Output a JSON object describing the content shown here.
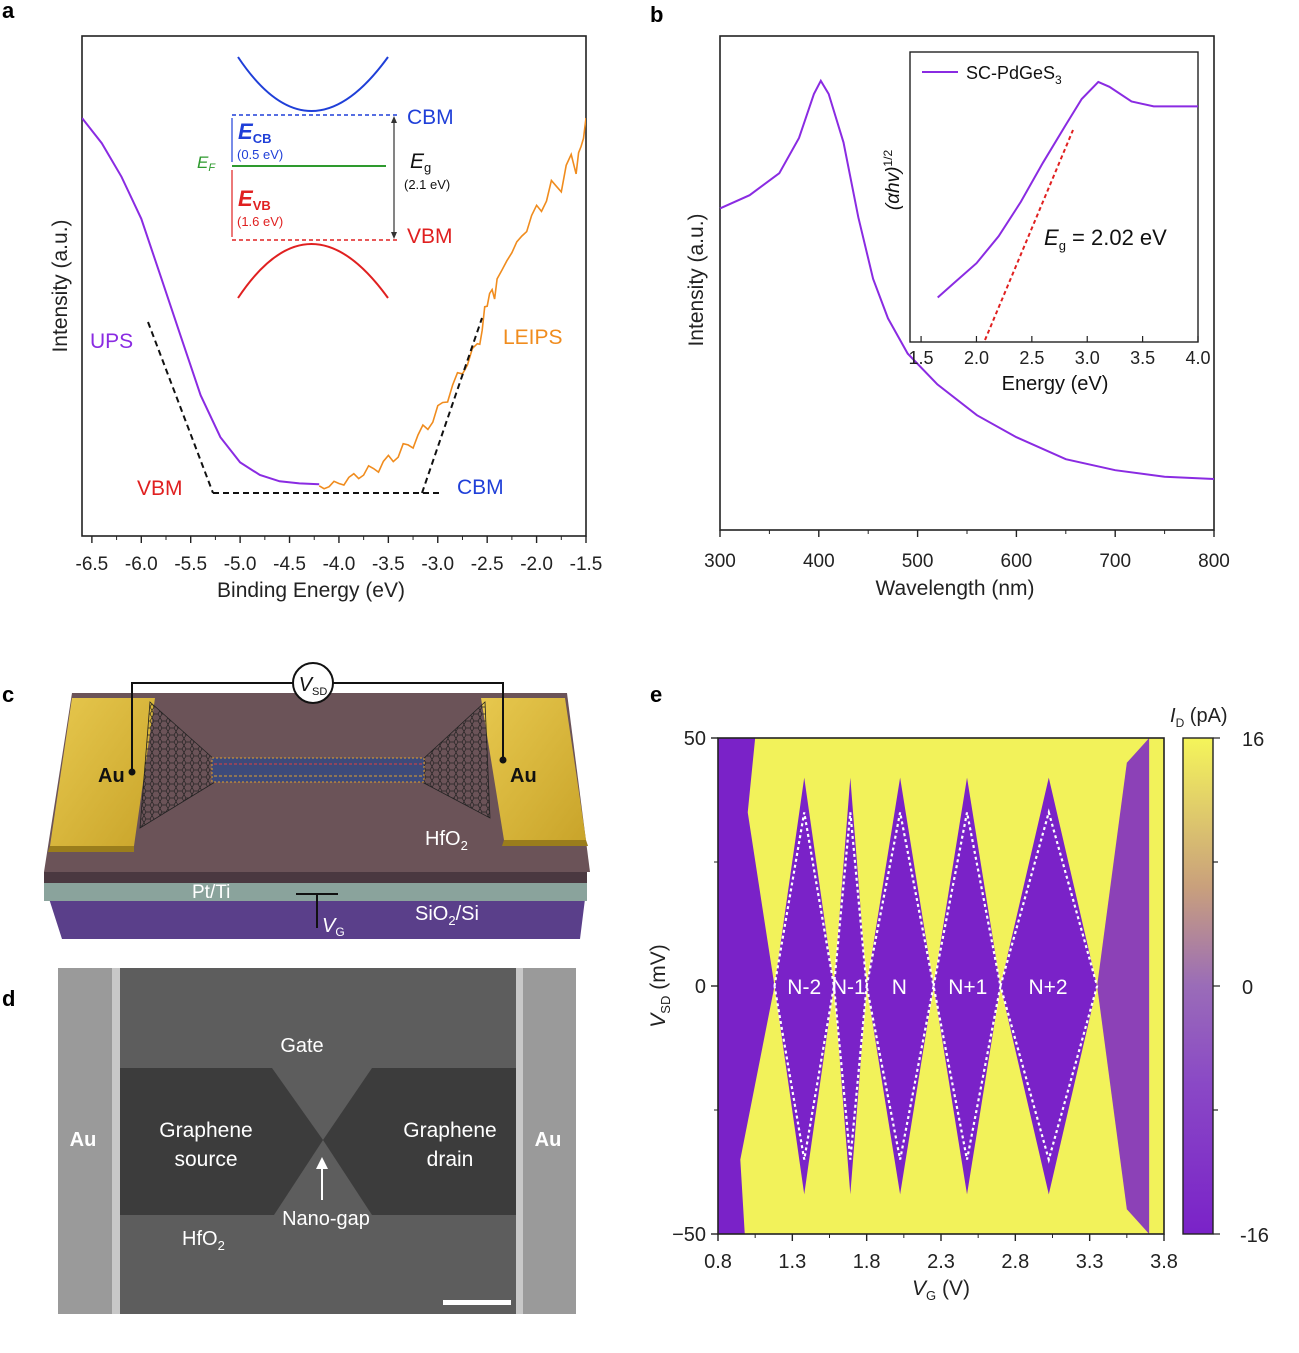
{
  "panels": {
    "a": {
      "letter": "a",
      "chart_data": {
        "type": "line",
        "xlabel": "Binding Energy (eV)",
        "ylabel": "Intensity (a.u.)",
        "xlim": [
          -6.6,
          -1.5
        ],
        "x_ticks": [
          "-6.5",
          "-6.0",
          "-5.5",
          "-5.0",
          "-4.5",
          "-4.0",
          "-3.5",
          "-3.0",
          "-2.5",
          "-2.0",
          "-1.5"
        ],
        "series": [
          {
            "name": "UPS",
            "color": "#8a2be2",
            "points": [
              [
                -6.6,
                0.9
              ],
              [
                -6.4,
                0.84
              ],
              [
                -6.2,
                0.76
              ],
              [
                -6.0,
                0.66
              ],
              [
                -5.8,
                0.52
              ],
              [
                -5.6,
                0.38
              ],
              [
                -5.4,
                0.24
              ],
              [
                -5.2,
                0.14
              ],
              [
                -5.0,
                0.08
              ],
              [
                -4.8,
                0.05
              ],
              [
                -4.6,
                0.035
              ],
              [
                -4.4,
                0.03
              ],
              [
                -4.2,
                0.028
              ]
            ]
          },
          {
            "name": "LEIPS",
            "color": "#f08c1e",
            "points": [
              [
                -4.2,
                0.02
              ],
              [
                -4.0,
                0.03
              ],
              [
                -3.8,
                0.05
              ],
              [
                -3.6,
                0.07
              ],
              [
                -3.4,
                0.1
              ],
              [
                -3.2,
                0.14
              ],
              [
                -3.0,
                0.2
              ],
              [
                -2.8,
                0.28
              ],
              [
                -2.6,
                0.36
              ],
              [
                -2.5,
                0.45
              ],
              [
                -2.4,
                0.52
              ],
              [
                -2.2,
                0.6
              ],
              [
                -2.0,
                0.68
              ],
              [
                -1.8,
                0.74
              ],
              [
                -1.6,
                0.8
              ],
              [
                -1.5,
                0.9
              ]
            ]
          }
        ],
        "annotations": {
          "ups": "UPS",
          "leips": "LEIPS",
          "vbm": "VBM",
          "cbm": "CBM"
        }
      },
      "inset": {
        "cbm": "CBM",
        "vbm": "VBM",
        "ef": "E",
        "ef_sub": "F",
        "ecb": "E",
        "ecb_sub": "CB",
        "ecb_val": "(0.5 eV)",
        "evb": "E",
        "evb_sub": "VB",
        "evb_val": "(1.6 eV)",
        "eg": "E",
        "eg_sub": "g",
        "eg_val": "(2.1 eV)"
      }
    },
    "b": {
      "letter": "b",
      "chart_data": {
        "type": "line",
        "xlabel": "Wavelength (nm)",
        "ylabel": "Intensity (a.u.)",
        "xlim": [
          300,
          800
        ],
        "x_ticks": [
          "300",
          "400",
          "500",
          "600",
          "700",
          "800"
        ],
        "series": [
          {
            "color": "#8a2be2",
            "points": [
              [
                300,
                0.64
              ],
              [
                330,
                0.67
              ],
              [
                360,
                0.72
              ],
              [
                380,
                0.8
              ],
              [
                395,
                0.9
              ],
              [
                402,
                0.93
              ],
              [
                410,
                0.9
              ],
              [
                425,
                0.79
              ],
              [
                440,
                0.62
              ],
              [
                455,
                0.48
              ],
              [
                470,
                0.39
              ],
              [
                490,
                0.31
              ],
              [
                520,
                0.24
              ],
              [
                560,
                0.17
              ],
              [
                600,
                0.12
              ],
              [
                650,
                0.07
              ],
              [
                700,
                0.045
              ],
              [
                750,
                0.03
              ],
              [
                800,
                0.025
              ]
            ]
          }
        ]
      },
      "inset": {
        "chart_data": {
          "type": "line",
          "xlabel": "Energy (eV)",
          "ylabel_main": "(αhv)",
          "ylabel_sup": "1/2",
          "xlim": [
            1.4,
            4.0
          ],
          "x_ticks": [
            "1.5",
            "2.0",
            "2.5",
            "3.0",
            "3.5",
            "4.0"
          ],
          "legend": {
            "label": "SC-PdGeS",
            "sub": "3"
          },
          "series": [
            {
              "name": "SC-PdGeS3",
              "color": "#8a2be2",
              "points": [
                [
                  1.65,
                  0.1
                ],
                [
                  1.8,
                  0.16
                ],
                [
                  2.0,
                  0.24
                ],
                [
                  2.2,
                  0.35
                ],
                [
                  2.4,
                  0.49
                ],
                [
                  2.6,
                  0.65
                ],
                [
                  2.8,
                  0.8
                ],
                [
                  2.95,
                  0.91
                ],
                [
                  3.1,
                  0.98
                ],
                [
                  3.2,
                  0.96
                ],
                [
                  3.4,
                  0.9
                ],
                [
                  3.6,
                  0.88
                ],
                [
                  3.8,
                  0.88
                ],
                [
                  4.0,
                  0.88
                ]
              ]
            }
          ],
          "fit_label": {
            "e": "E",
            "sub": "g",
            "rest": " = 2.02 eV"
          }
        }
      }
    },
    "c": {
      "letter": "c",
      "vsd": "V",
      "vsd_sub": "SD",
      "au_left": "Au",
      "au_right": "Au",
      "hfo2": "HfO",
      "hfo2_sub": "2",
      "ptti": "Pt/Ti",
      "vg": "V",
      "vg_sub": "G",
      "sio2": "SiO",
      "sio2_sub": "2",
      "sio2_rest": "/Si"
    },
    "d": {
      "letter": "d",
      "gate": "Gate",
      "au_left": "Au",
      "au_right": "Au",
      "source_1": "Graphene",
      "source_2": "source",
      "drain_1": "Graphene",
      "drain_2": "drain",
      "nanogap": "Nano-gap",
      "hfo2": "HfO",
      "hfo2_sub": "2"
    },
    "e": {
      "letter": "e",
      "chart_data": {
        "type": "heatmap",
        "xlabel_main": "V",
        "xlabel_sub": "G",
        "xlabel_rest": " (V)",
        "ylabel_main": "V",
        "ylabel_sub": "SD",
        "ylabel_rest": " (mV)",
        "xlim": [
          0.8,
          3.8
        ],
        "ylim": [
          -50,
          50
        ],
        "x_ticks": [
          "0.8",
          "1.3",
          "1.8",
          "2.3",
          "2.8",
          "3.3",
          "3.8"
        ],
        "y_ticks": [
          "50",
          "0",
          "−50"
        ],
        "colorbar": {
          "title_main": "I",
          "title_sub": "D",
          "title_rest": " (pA)",
          "ticks": [
            "16",
            "0",
            "-16"
          ],
          "range": [
            -16,
            16
          ]
        },
        "diamonds": [
          {
            "label": "N-2",
            "center": 1.38
          },
          {
            "label": "N-1",
            "center": 1.68
          },
          {
            "label": "N",
            "center": 2.02
          },
          {
            "label": "N+1",
            "center": 2.48
          },
          {
            "label": "N+2",
            "center": 3.02
          }
        ],
        "crossings": [
          1.18,
          1.58,
          1.8,
          2.25,
          2.7,
          3.35
        ]
      }
    }
  }
}
